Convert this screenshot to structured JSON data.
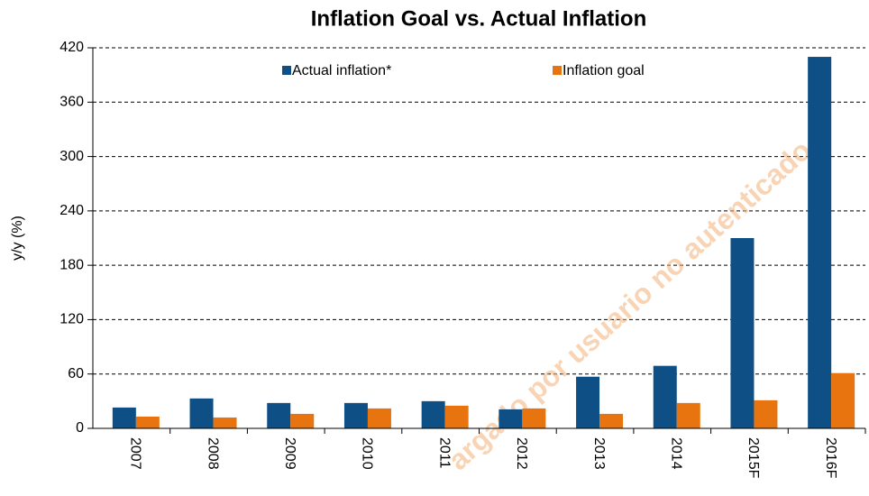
{
  "chart_data": {
    "type": "bar",
    "title": "Inflation Goal vs. Actual Inflation",
    "y_label": "y/y (%)",
    "watermark": "argado por usuario no autenticado",
    "categories": [
      "2007",
      "2008",
      "2009",
      "2010",
      "2011",
      "2012",
      "2013",
      "2014",
      "2015F",
      "2016F"
    ],
    "series": [
      {
        "name": "Actual inflation*",
        "color": "#0e4f86",
        "values": [
          23,
          33,
          28,
          28,
          30,
          21,
          57,
          69,
          210,
          410
        ]
      },
      {
        "name": "Inflation goal",
        "color": "#e8740f",
        "values": [
          13,
          12,
          16,
          22,
          25,
          22,
          16,
          28,
          31,
          61
        ]
      }
    ],
    "ylim": [
      0,
      420
    ],
    "yticks": [
      0,
      60,
      120,
      180,
      240,
      300,
      360,
      420
    ],
    "grid": true
  }
}
